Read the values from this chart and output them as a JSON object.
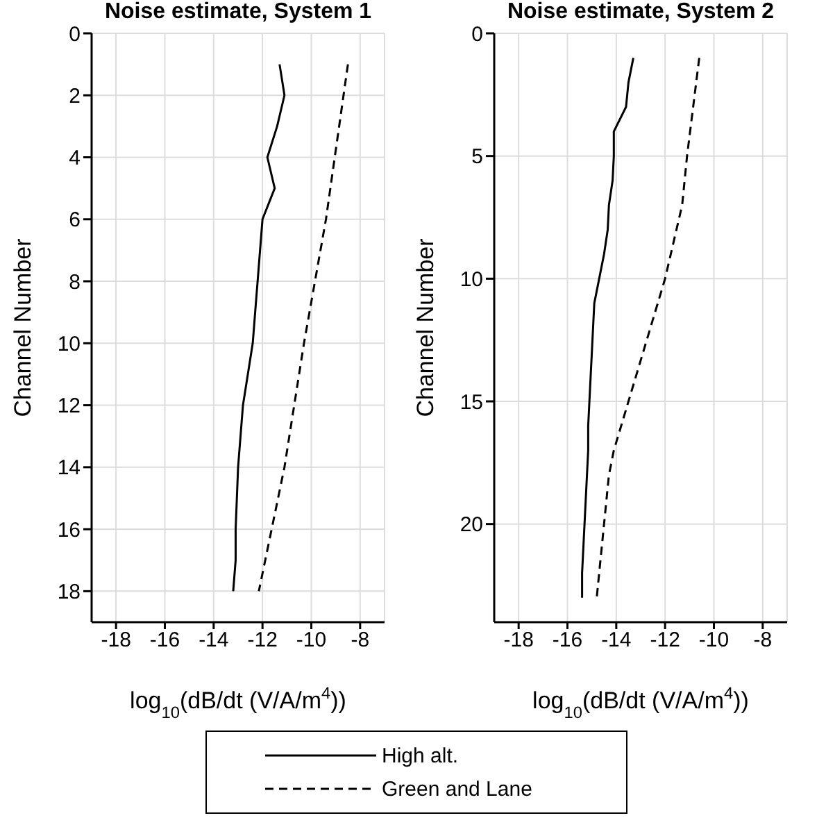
{
  "chart_data": [
    {
      "type": "line",
      "title": "Noise estimate, System 1",
      "xlabel": "log$_{10}$(dB/dt (V/A/m$^{4}$))",
      "ylabel": "Channel Number",
      "xlim": [
        -19,
        -7
      ],
      "xticks": [
        -18,
        -16,
        -14,
        -12,
        -10,
        -8
      ],
      "ylim": [
        19,
        0
      ],
      "yticks": [
        0,
        2,
        4,
        6,
        8,
        10,
        12,
        14,
        16,
        18
      ],
      "grid": true,
      "legend": "bottom",
      "marker": "none",
      "series": [
        {
          "name": "High alt.",
          "color": "#000000",
          "line_style": "solid",
          "x": [
            -11.3,
            -11.1,
            -11.4,
            -11.8,
            -11.5,
            -12.0,
            -12.1,
            -12.2,
            -12.3,
            -12.4,
            -12.6,
            -12.8,
            -12.9,
            -13.0,
            -13.05,
            -13.1,
            -13.1,
            -13.2
          ],
          "values": [
            1,
            2,
            3,
            4,
            5,
            6,
            7,
            8,
            9,
            10,
            11,
            12,
            13,
            14,
            15,
            16,
            17,
            18
          ]
        },
        {
          "name": "Green and Lane",
          "color": "#000000",
          "line_style": "dashed",
          "x": [
            -8.5,
            -9.4,
            -10.3,
            -11.1,
            -12.15
          ],
          "values": [
            1,
            6,
            10,
            14,
            18
          ]
        }
      ]
    },
    {
      "type": "line",
      "title": "Noise estimate, System 2",
      "xlabel": "log$_{10}$(dB/dt (V/A/m$^{4}$))",
      "ylabel": "Channel Number",
      "xlim": [
        -19,
        -7
      ],
      "xticks": [
        -18,
        -16,
        -14,
        -12,
        -10,
        -8
      ],
      "ylim": [
        24,
        0
      ],
      "yticks": [
        0,
        5,
        10,
        15,
        20
      ],
      "grid": true,
      "marker": "none",
      "series": [
        {
          "color": "#000000",
          "line_style": "solid",
          "x": [
            -13.3,
            -13.5,
            -13.6,
            -14.1,
            -14.1,
            -14.15,
            -14.3,
            -14.35,
            -14.5,
            -14.7,
            -14.9,
            -14.95,
            -15.0,
            -15.05,
            -15.1,
            -15.15,
            -15.15,
            -15.2,
            -15.25,
            -15.3,
            -15.35,
            -15.4,
            -15.4
          ],
          "values": [
            1,
            2,
            3,
            4,
            5,
            6,
            7,
            8,
            9,
            10,
            11,
            12,
            13,
            14,
            15,
            16,
            17,
            18,
            19,
            20,
            21,
            22,
            23
          ]
        },
        {
          "color": "#000000",
          "line_style": "dashed",
          "x": [
            -10.6,
            -11.1,
            -11.3,
            -12.0,
            -12.6,
            -13.5,
            -14.1,
            -14.3,
            -14.5,
            -14.8
          ],
          "values": [
            1,
            5,
            7,
            10,
            12,
            15,
            17,
            18,
            20,
            23
          ]
        }
      ]
    }
  ]
}
